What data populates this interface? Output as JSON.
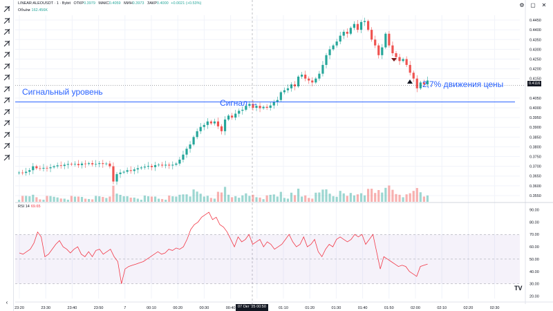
{
  "header": {
    "symbol": "LINEAR:ALEOUSDT · 1 · Bybit",
    "open_label": "ОТКР",
    "open": "0.3979",
    "high_label": "МАКС",
    "high": "0.4059",
    "low_label": "МИН",
    "low": "0.3973",
    "close_label": "ЗАКР",
    "close": "0.4000",
    "change": "+0.0021 (+0.53%)"
  },
  "volume_legend": {
    "label": "Объём",
    "value": "162.456K"
  },
  "rsi_legend": {
    "label": "RSI 14",
    "value": "69.65"
  },
  "annotations": {
    "signal_level": "Сигнальный уровень",
    "signal": "Сигнал",
    "move": "2,7% движения цены"
  },
  "price_axis": [
    "0.4450",
    "0.4400",
    "0.4350",
    "0.4300",
    "0.4250",
    "0.4200",
    "0.4150",
    "0.4050",
    "0.4000",
    "0.3950",
    "0.3900",
    "0.3850",
    "0.3800",
    "0.3750",
    "0.3700",
    "0.3650",
    "0.3600",
    "0.3550"
  ],
  "current_price": "0.4116",
  "rsi_axis": [
    "90.00",
    "80.00",
    "70.00",
    "60.00",
    "50.00",
    "40.00",
    "30.00",
    "20.00"
  ],
  "time_axis": [
    "23:20",
    "23:30",
    "23:40",
    "23:50",
    "7",
    "00:10",
    "00:20",
    "00:30",
    "00:40",
    "01:00",
    "01:10",
    "01:20",
    "01:30",
    "01:40",
    "01:50",
    "02:00",
    "02:10",
    "02:20",
    "02:30"
  ],
  "date_badge": "07 Окт '25   00:50",
  "colors": {
    "up": "#26a69a",
    "down": "#ef5350",
    "level": "#2962ff",
    "rsi": "#f23645",
    "rsi_band": "#7e57c2"
  },
  "toolbar_icons": [
    "crosshair-icon",
    "trend-line-icon",
    "fib-icon",
    "pattern-icon",
    "forecast-icon",
    "brush-icon",
    "text-icon",
    "emoji-icon",
    "ruler-icon",
    "zoom-icon",
    "magnet-icon",
    "lock-icon",
    "eye-icon",
    "trash-icon"
  ],
  "brand": "TV"
}
